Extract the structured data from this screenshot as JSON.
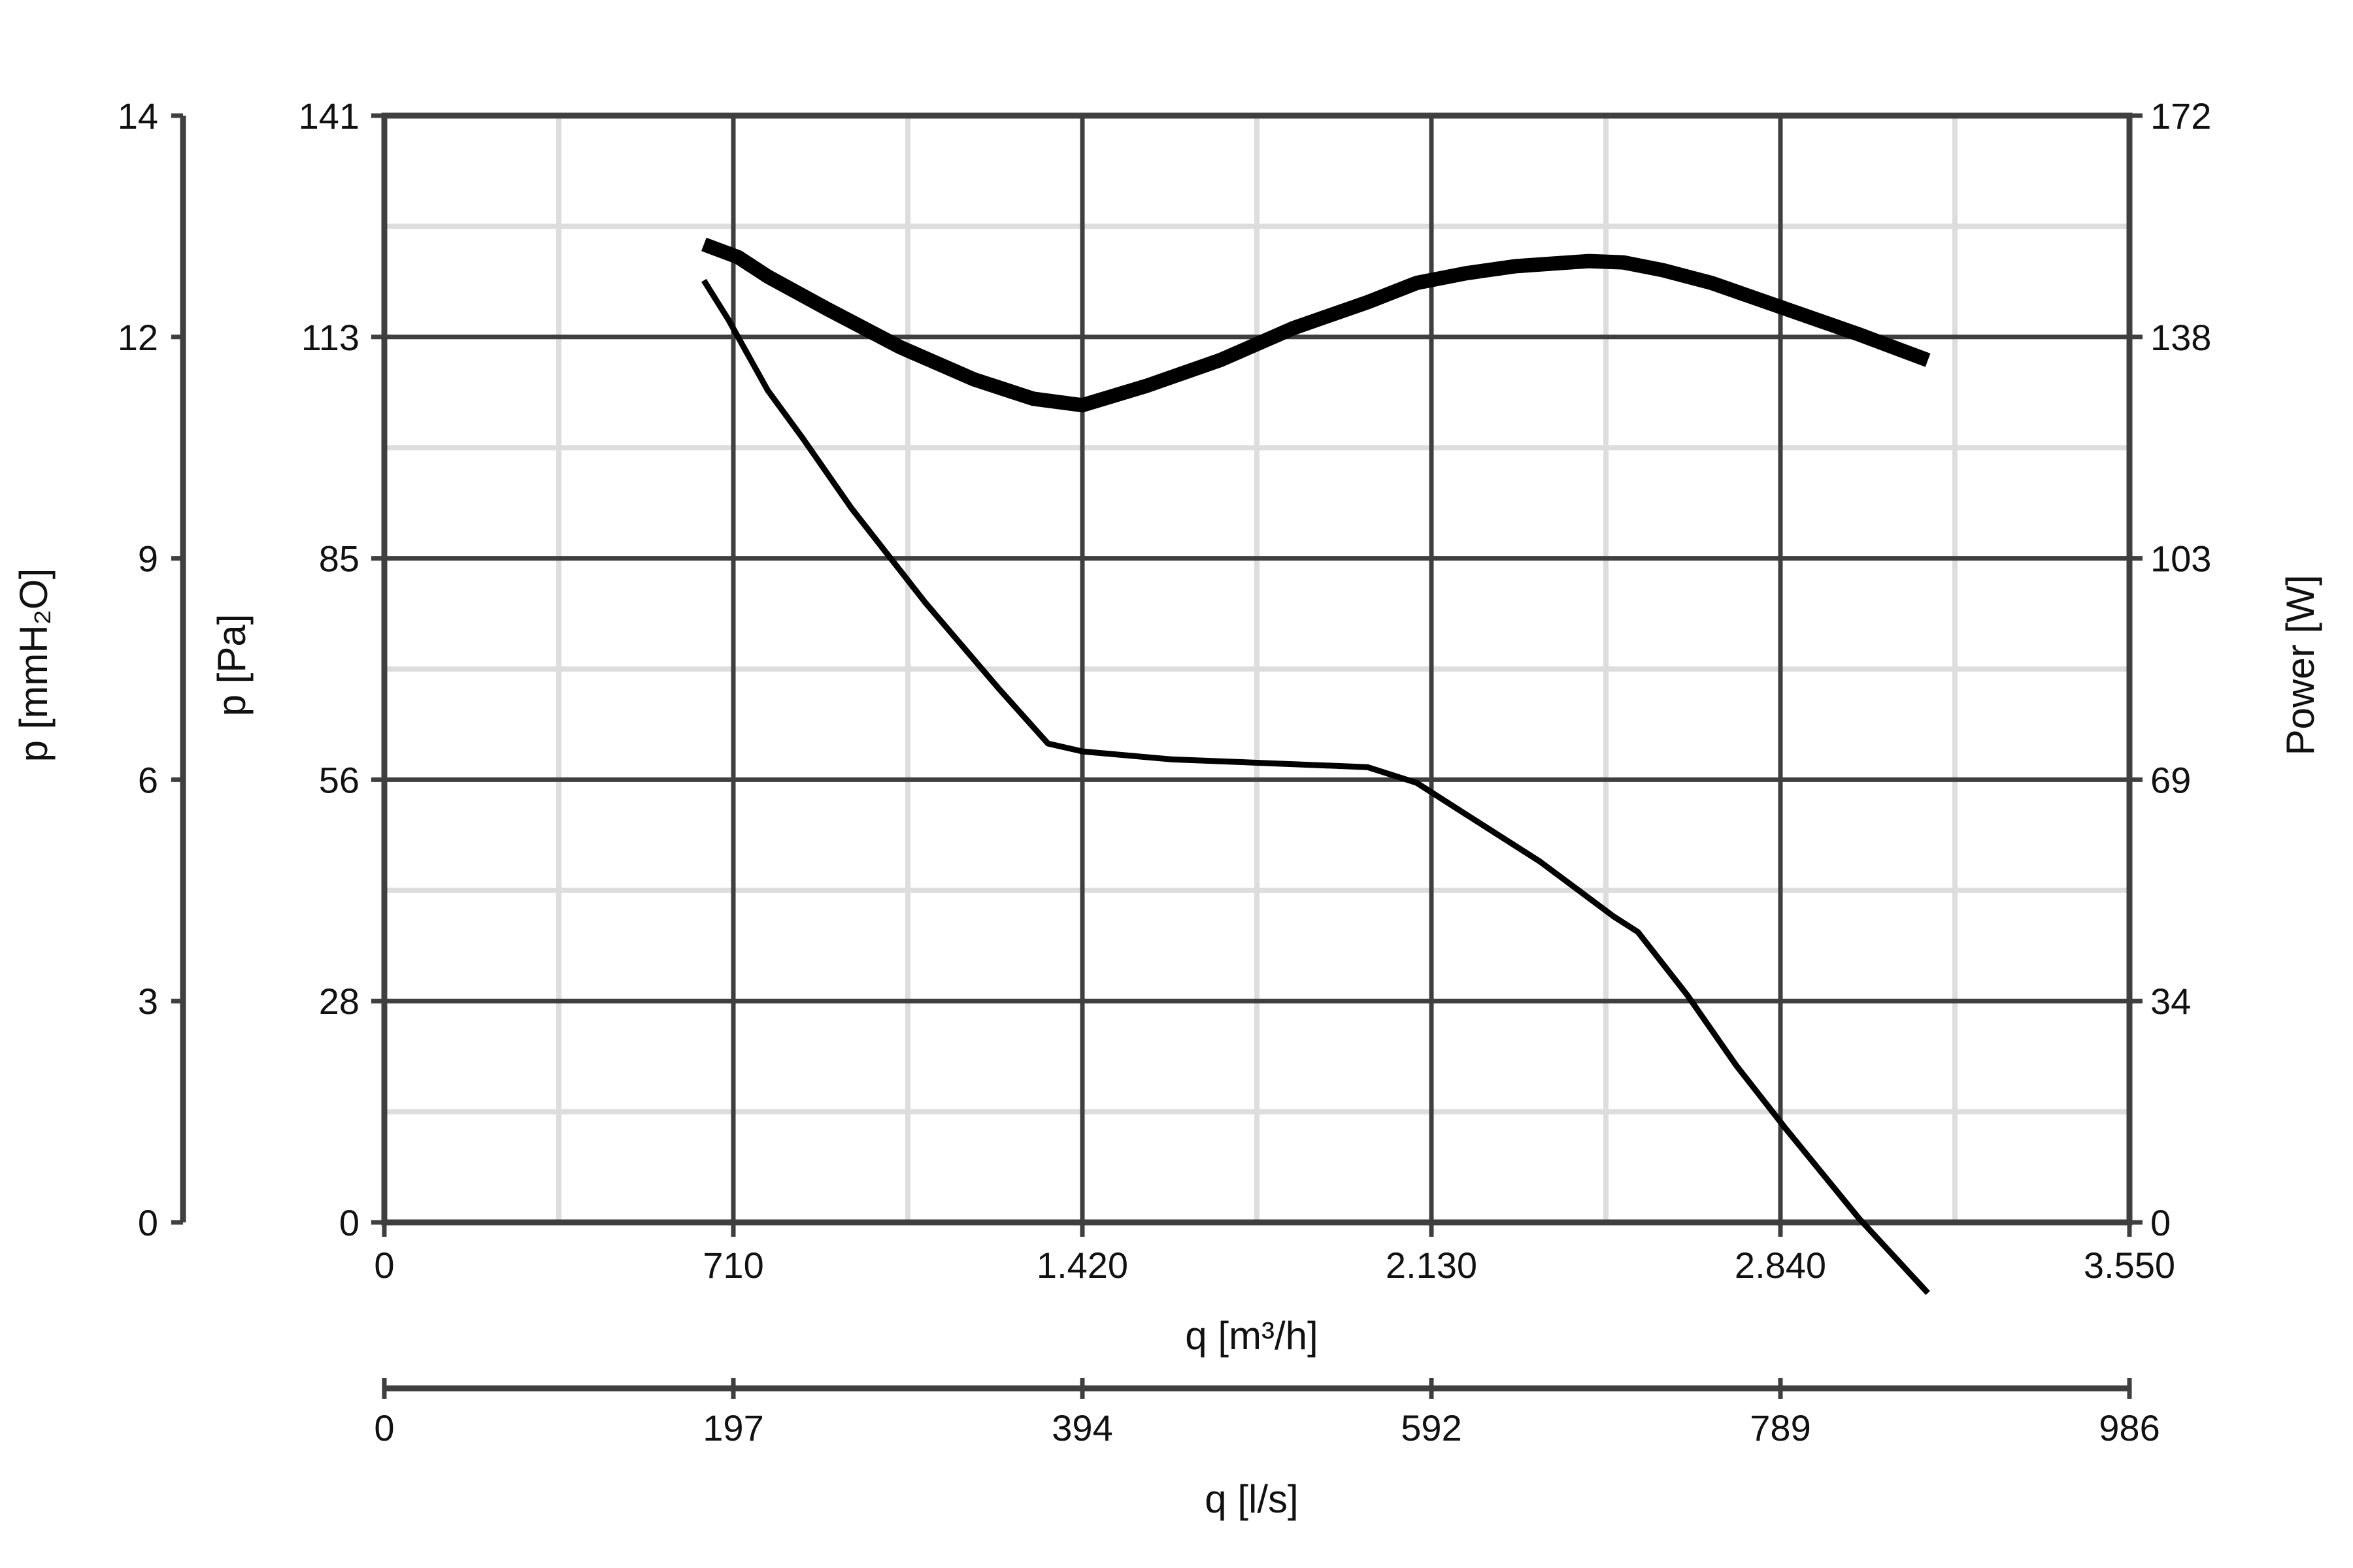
{
  "chart_data": {
    "type": "line",
    "x_axis_primary": {
      "label": "q [m³/h]",
      "range": [
        0,
        3550
      ],
      "ticks": [
        "0",
        "710",
        "1.420",
        "2.130",
        "2.840",
        "3.550"
      ],
      "grid": true
    },
    "x_axis_secondary": {
      "label": "q [l/s]",
      "ticks": [
        "0",
        "197",
        "394",
        "592",
        "789",
        "986"
      ]
    },
    "y_axis_left_outer": {
      "label": "p [mmH₂O]",
      "ticks": [
        "0",
        "3",
        "6",
        "9",
        "12",
        "14"
      ]
    },
    "y_axis_left": {
      "label": "p [Pa]",
      "range": [
        0,
        141
      ],
      "ticks": [
        "0",
        "28",
        "56",
        "85",
        "113",
        "141"
      ],
      "grid": true
    },
    "y_axis_right": {
      "label": "Power [W]",
      "range": [
        0,
        172
      ],
      "ticks": [
        "0",
        "34",
        "69",
        "103",
        "138",
        "172"
      ]
    },
    "series": [
      {
        "axis": "right",
        "stroke": "thick",
        "color": "#000000",
        "x": [
          650,
          720,
          780,
          900,
          1050,
          1200,
          1320,
          1420,
          1550,
          1700,
          1850,
          2000,
          2100,
          2200,
          2300,
          2450,
          2520,
          2600,
          2700,
          2850,
          3000,
          3140
        ],
        "y": [
          152,
          150,
          147,
          142,
          136,
          131,
          128,
          127,
          130,
          134,
          139,
          143,
          146,
          147.5,
          148.6,
          149.4,
          149.2,
          148,
          146,
          142,
          138,
          134
        ]
      },
      {
        "axis": "left",
        "stroke": "thin",
        "color": "#000000",
        "x": [
          650,
          700,
          780,
          850,
          950,
          1100,
          1250,
          1350,
          1420,
          1600,
          1800,
          2000,
          2100,
          2200,
          2350,
          2500,
          2550,
          2650,
          2750,
          2850,
          3000,
          3140
        ],
        "y": [
          120,
          115,
          106,
          100,
          91,
          79,
          68,
          61,
          60,
          59,
          58.5,
          58,
          56,
          52,
          46,
          39,
          37,
          29,
          20,
          12,
          0.5,
          -9
        ]
      }
    ]
  }
}
